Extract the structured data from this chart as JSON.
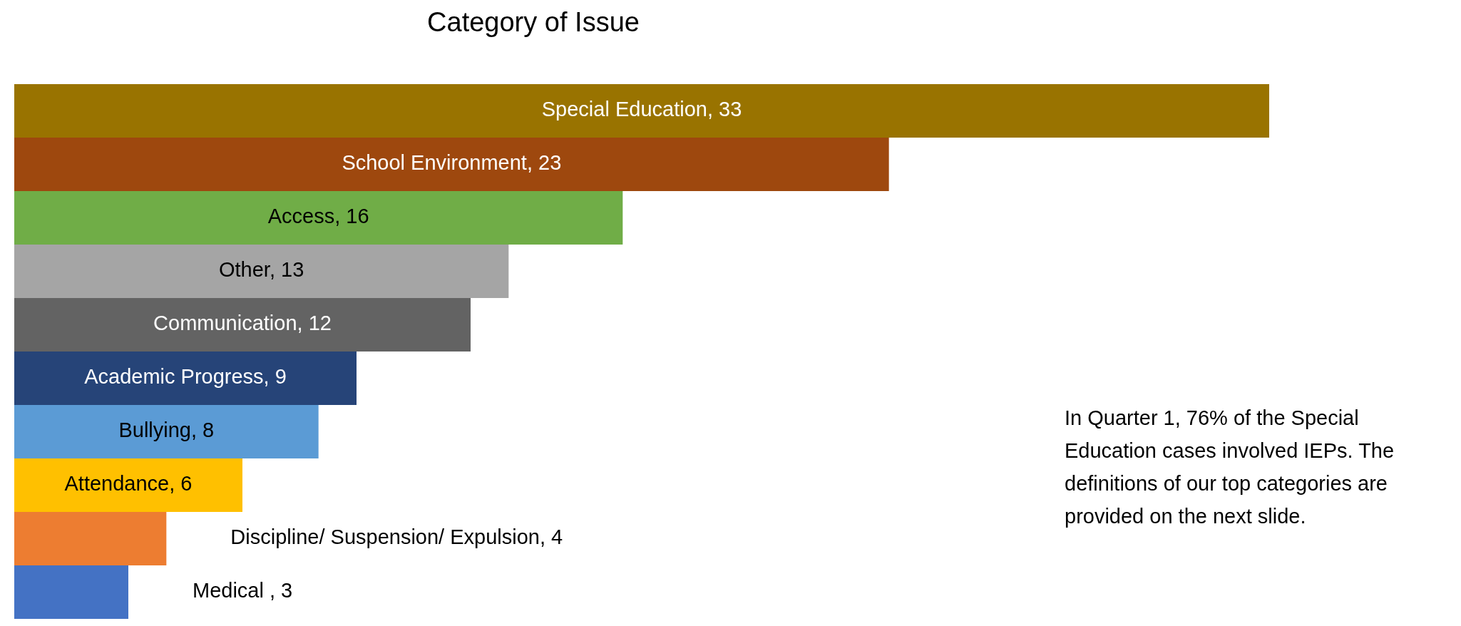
{
  "chart_data": {
    "type": "bar",
    "orientation": "horizontal",
    "title": "Category of Issue",
    "categories": [
      null,
      null,
      null,
      null,
      null,
      null,
      null,
      null,
      null,
      null
    ],
    "values": [
      33,
      23,
      16,
      13,
      12,
      9,
      8,
      6,
      4,
      3
    ],
    "colors": [
      "#997300",
      "#9e480e",
      "#70ad47",
      "#a5a5a5",
      "#636363",
      "#264478",
      "#5b9bd5",
      "#ffc000",
      "#ed7d31",
      "#4472c4"
    ],
    "value_labels": [
      "Special Education, 33",
      "School Environment, 23",
      "Access, 16",
      "Other, 13",
      "Communication, 12",
      "Academic Progress, 9",
      "Bullying, 8",
      "Attendance, 6",
      "Discipline/ Suspension/ Expulsion, 4",
      "Medical , 3"
    ],
    "annotations": [
      "In Quarter 1, 76% of the Special Education cases involved IEPs. The definitions of our top categories are provided on the next slide."
    ]
  }
}
